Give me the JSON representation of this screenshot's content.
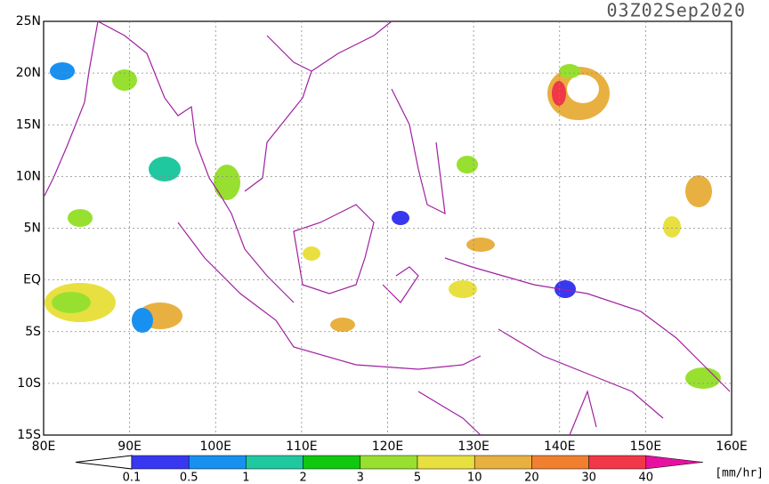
{
  "title": "03Z02Sep2020",
  "map": {
    "lat_labels": [
      "25N",
      "20N",
      "15N",
      "10N",
      "5N",
      "EQ",
      "5S",
      "10S",
      "15S"
    ],
    "lon_labels": [
      "80E",
      "90E",
      "100E",
      "110E",
      "120E",
      "130E",
      "140E",
      "150E",
      "160E"
    ]
  },
  "colorbar": {
    "levels": [
      0.1,
      0.5,
      1,
      2,
      3,
      5,
      10,
      20,
      30,
      40
    ],
    "colors": [
      "#3838f0",
      "#1890f0",
      "#20c8a0",
      "#10c810",
      "#98e030",
      "#e8e040",
      "#e8b040",
      "#f08030",
      "#f03848",
      "#e810a0"
    ],
    "unit": "[mm/hr]"
  }
}
